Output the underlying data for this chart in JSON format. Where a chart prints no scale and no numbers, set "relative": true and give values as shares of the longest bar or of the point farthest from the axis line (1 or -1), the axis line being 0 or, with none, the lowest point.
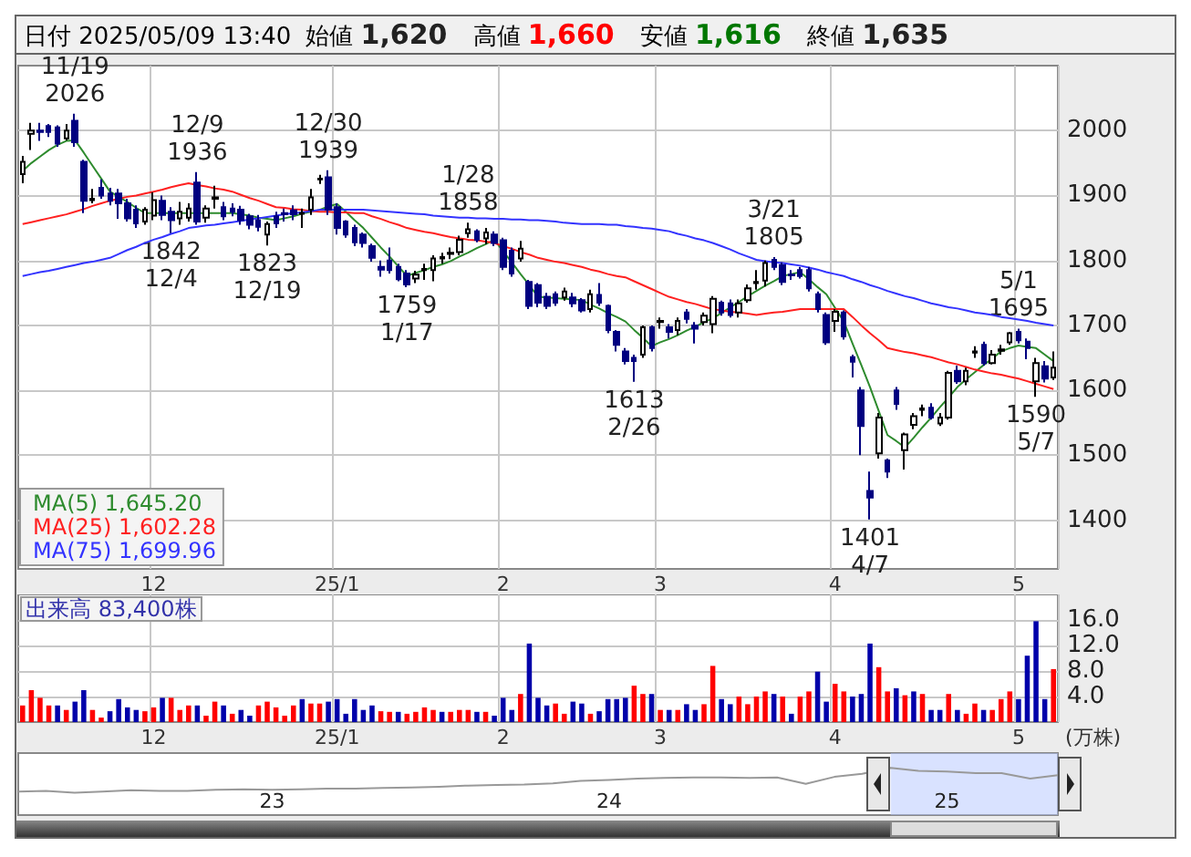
{
  "chart_data": [
    {
      "type": "candlestick",
      "title": "日付 2025/05/09 13:40",
      "categories": [
        null,
        null,
        null,
        null,
        null,
        null,
        null,
        null,
        null,
        null,
        null,
        null,
        null,
        null,
        null,
        "12",
        null,
        null,
        null,
        null,
        null,
        null,
        null,
        null,
        null,
        null,
        null,
        null,
        null,
        null,
        null,
        null,
        null,
        null,
        null,
        null,
        "25/1",
        null,
        null,
        null,
        null,
        null,
        null,
        null,
        null,
        null,
        null,
        null,
        null,
        null,
        null,
        null,
        null,
        null,
        null,
        "2",
        null,
        null,
        null,
        null,
        null,
        null,
        null,
        null,
        null,
        null,
        null,
        null,
        null,
        null,
        null,
        null,
        null,
        "3",
        null,
        null,
        null,
        null,
        null,
        null,
        null,
        null,
        null,
        null,
        null,
        null,
        null,
        null,
        null,
        null,
        null,
        null,
        null,
        "4",
        null,
        null,
        null,
        null,
        null,
        null,
        null,
        null,
        null,
        null,
        null,
        null,
        null,
        null,
        null,
        null,
        null,
        null,
        null,
        null,
        "5",
        null,
        null,
        null,
        null
      ],
      "ohlc": [
        [
          1933,
          1961,
          1919,
          1952
        ],
        [
          1995,
          2012,
          1970,
          2000
        ],
        [
          2000,
          2012,
          1984,
          1998
        ],
        [
          2007,
          2010,
          1990,
          1998
        ],
        [
          2005,
          2008,
          1975,
          1980
        ],
        [
          1988,
          2010,
          1985,
          2000
        ],
        [
          2015,
          2026,
          1975,
          1982
        ],
        [
          1952,
          1955,
          1873,
          1892
        ],
        [
          1893,
          1910,
          1888,
          1895
        ],
        [
          1912,
          1925,
          1895,
          1900
        ],
        [
          1903,
          1912,
          1885,
          1892
        ],
        [
          1903,
          1910,
          1864,
          1888
        ],
        [
          1888,
          1895,
          1860,
          1865
        ],
        [
          1878,
          1885,
          1850,
          1857
        ],
        [
          1860,
          1882,
          1855,
          1878
        ],
        [
          1869,
          1905,
          1862,
          1893
        ],
        [
          1892,
          1900,
          1862,
          1870
        ],
        [
          1875,
          1882,
          1842,
          1862
        ],
        [
          1865,
          1890,
          1855,
          1875
        ],
        [
          1866,
          1888,
          1860,
          1880
        ],
        [
          1920,
          1936,
          1855,
          1860
        ],
        [
          1866,
          1885,
          1858,
          1880
        ],
        [
          1895,
          1915,
          1880,
          1897
        ],
        [
          1882,
          1890,
          1862,
          1868
        ],
        [
          1880,
          1888,
          1868,
          1875
        ],
        [
          1878,
          1884,
          1855,
          1862
        ],
        [
          1868,
          1872,
          1848,
          1855
        ],
        [
          1862,
          1870,
          1845,
          1852
        ],
        [
          1840,
          1860,
          1823,
          1856
        ],
        [
          1868,
          1875,
          1850,
          1857
        ],
        [
          1873,
          1880,
          1860,
          1871
        ],
        [
          1877,
          1885,
          1862,
          1871
        ],
        [
          1872,
          1880,
          1850,
          1873
        ],
        [
          1878,
          1910,
          1870,
          1897
        ],
        [
          1925,
          1932,
          1918,
          1926
        ],
        [
          1928,
          1939,
          1870,
          1878
        ],
        [
          1882,
          1888,
          1840,
          1850
        ],
        [
          1860,
          1862,
          1835,
          1840
        ],
        [
          1850,
          1855,
          1822,
          1828
        ],
        [
          1840,
          1843,
          1820,
          1827
        ],
        [
          1822,
          1826,
          1798,
          1804
        ],
        [
          1790,
          1800,
          1775,
          1786
        ],
        [
          1800,
          1820,
          1780,
          1785
        ],
        [
          1790,
          1795,
          1768,
          1771
        ],
        [
          1780,
          1785,
          1759,
          1763
        ],
        [
          1772,
          1784,
          1765,
          1778
        ],
        [
          1785,
          1795,
          1770,
          1787
        ],
        [
          1785,
          1808,
          1768,
          1803
        ],
        [
          1803,
          1812,
          1795,
          1805
        ],
        [
          1810,
          1820,
          1802,
          1812
        ],
        [
          1813,
          1838,
          1808,
          1832
        ],
        [
          1842,
          1858,
          1835,
          1848
        ],
        [
          1845,
          1848,
          1828,
          1832
        ],
        [
          1834,
          1850,
          1825,
          1843
        ],
        [
          1840,
          1845,
          1822,
          1827
        ],
        [
          1831,
          1835,
          1785,
          1790
        ],
        [
          1815,
          1820,
          1775,
          1780
        ],
        [
          1803,
          1830,
          1798,
          1818
        ],
        [
          1767,
          1770,
          1725,
          1730
        ],
        [
          1762,
          1765,
          1728,
          1735
        ],
        [
          1744,
          1750,
          1725,
          1730
        ],
        [
          1748,
          1752,
          1730,
          1735
        ],
        [
          1743,
          1758,
          1738,
          1752
        ],
        [
          1743,
          1750,
          1728,
          1734
        ],
        [
          1739,
          1742,
          1720,
          1723
        ],
        [
          1725,
          1755,
          1720,
          1748
        ],
        [
          1747,
          1765,
          1730,
          1735
        ],
        [
          1730,
          1732,
          1688,
          1693
        ],
        [
          1690,
          1693,
          1660,
          1670
        ],
        [
          1660,
          1665,
          1640,
          1645
        ],
        [
          1650,
          1655,
          1613,
          1645
        ],
        [
          1655,
          1700,
          1650,
          1697
        ],
        [
          1697,
          1700,
          1660,
          1665
        ],
        [
          1705,
          1712,
          1695,
          1707
        ],
        [
          1697,
          1702,
          1680,
          1690
        ],
        [
          1693,
          1712,
          1685,
          1707
        ],
        [
          1720,
          1725,
          1703,
          1710
        ],
        [
          1700,
          1705,
          1672,
          1695
        ],
        [
          1705,
          1720,
          1700,
          1715
        ],
        [
          1702,
          1745,
          1688,
          1741
        ],
        [
          1735,
          1738,
          1715,
          1720
        ],
        [
          1734,
          1740,
          1712,
          1716
        ],
        [
          1720,
          1740,
          1712,
          1734
        ],
        [
          1739,
          1763,
          1735,
          1757
        ],
        [
          1765,
          1785,
          1755,
          1767
        ],
        [
          1769,
          1800,
          1760,
          1796
        ],
        [
          1801,
          1805,
          1785,
          1790
        ],
        [
          1793,
          1797,
          1762,
          1767
        ],
        [
          1778,
          1785,
          1770,
          1777
        ],
        [
          1785,
          1790,
          1772,
          1776
        ],
        [
          1785,
          1790,
          1752,
          1757
        ],
        [
          1748,
          1752,
          1720,
          1725
        ],
        [
          1716,
          1720,
          1670,
          1674
        ],
        [
          1707,
          1725,
          1690,
          1721
        ],
        [
          1720,
          1723,
          1678,
          1683
        ],
        [
          1651,
          1655,
          1620,
          1644
        ],
        [
          1600,
          1605,
          1500,
          1545
        ],
        [
          1445,
          1475,
          1401,
          1435
        ],
        [
          1503,
          1565,
          1495,
          1558
        ],
        [
          1492,
          1495,
          1465,
          1475
        ],
        [
          1600,
          1605,
          1570,
          1579
        ],
        [
          1508,
          1535,
          1478,
          1532
        ],
        [
          1547,
          1565,
          1540,
          1560
        ],
        [
          1570,
          1578,
          1560,
          1572
        ],
        [
          1573,
          1580,
          1555,
          1558
        ],
        [
          1549,
          1565,
          1545,
          1558
        ],
        [
          1558,
          1630,
          1555,
          1627
        ],
        [
          1630,
          1638,
          1610,
          1614
        ],
        [
          1614,
          1635,
          1608,
          1630
        ],
        [
          1658,
          1668,
          1650,
          1660
        ],
        [
          1670,
          1675,
          1638,
          1642
        ],
        [
          1642,
          1662,
          1640,
          1655
        ],
        [
          1661,
          1670,
          1655,
          1663
        ],
        [
          1674,
          1690,
          1670,
          1688
        ],
        [
          1690,
          1695,
          1672,
          1677
        ],
        [
          1675,
          1680,
          1648,
          1665
        ],
        [
          1614,
          1650,
          1590,
          1642
        ],
        [
          1637,
          1645,
          1612,
          1618
        ],
        [
          1620,
          1660,
          1616,
          1635
        ]
      ],
      "colors": [
        "#ffffff",
        "#ffffff",
        "#000080",
        "#000080",
        "#000080",
        "#ffffff",
        "#000080",
        "#000080",
        "#ffffff",
        "#000080",
        "#000080",
        "#000080",
        "#000080",
        "#000080",
        "#ffffff",
        "#ffffff",
        "#000080",
        "#000080",
        "#ffffff",
        "#ffffff",
        "#000080",
        "#ffffff",
        "#ffffff",
        "#000080",
        "#000080",
        "#000080",
        "#000080",
        "#000080",
        "#ffffff",
        "#000080",
        "#000080",
        "#000080",
        "#ffffff",
        "#ffffff",
        "#ffffff",
        "#000080",
        "#000080",
        "#000080",
        "#000080",
        "#000080",
        "#000080",
        "#000080",
        "#000080",
        "#000080",
        "#000080",
        "#ffffff",
        "#ffffff",
        "#ffffff",
        "#ffffff",
        "#ffffff",
        "#ffffff",
        "#ffffff",
        "#000080",
        "#ffffff",
        "#000080",
        "#000080",
        "#000080",
        "#ffffff",
        "#000080",
        "#000080",
        "#000080",
        "#000080",
        "#ffffff",
        "#000080",
        "#000080",
        "#ffffff",
        "#000080",
        "#000080",
        "#000080",
        "#000080",
        "#000080",
        "#ffffff",
        "#000080",
        "#ffffff",
        "#000080",
        "#ffffff",
        "#000080",
        "#000080",
        "#ffffff",
        "#ffffff",
        "#000080",
        "#000080",
        "#ffffff",
        "#ffffff",
        "#ffffff",
        "#ffffff",
        "#000080",
        "#000080",
        "#000080",
        "#000080",
        "#000080",
        "#000080",
        "#000080",
        "#ffffff",
        "#000080",
        "#000080",
        "#000080",
        "#000080",
        "#ffffff",
        "#000080",
        "#000080",
        "#ffffff",
        "#ffffff",
        "#ffffff",
        "#000080",
        "#ffffff",
        "#ffffff",
        "#000080",
        "#ffffff",
        "#ffffff",
        "#000080",
        "#ffffff",
        "#ffffff",
        "#ffffff",
        "#000080",
        "#000080",
        "#ffffff",
        "#000080",
        "#ffffff"
      ],
      "series": [
        {
          "type": "line",
          "name": "MA(5) 1,645.20",
          "color": "#2e8b2e",
          "values": [
            1938,
            1950,
            1960,
            1970,
            1978,
            1984,
            1985,
            1966,
            1946,
            1926,
            1906,
            1898,
            1890,
            1881,
            1873,
            1873,
            1873,
            1873,
            1873,
            1873,
            1873,
            1873,
            1873,
            1873,
            1873,
            1871,
            1869,
            1866,
            1864,
            1862,
            1865,
            1868,
            1872,
            1875,
            1878,
            1883,
            1887,
            1875,
            1862,
            1850,
            1835,
            1820,
            1806,
            1791,
            1776,
            1781,
            1785,
            1790,
            1794,
            1799,
            1806,
            1812,
            1819,
            1825,
            1832,
            1814,
            1797,
            1779,
            1762,
            1744,
            1743,
            1742,
            1741,
            1740,
            1739,
            1732,
            1726,
            1719,
            1713,
            1706,
            1693,
            1681,
            1668,
            1674,
            1679,
            1685,
            1692,
            1698,
            1705,
            1711,
            1719,
            1728,
            1736,
            1745,
            1753,
            1761,
            1768,
            1776,
            1779,
            1782,
            1771,
            1759,
            1748,
            1727,
            1706,
            1672,
            1639,
            1605,
            1568,
            1531,
            1522,
            1512,
            1527,
            1543,
            1558,
            1574,
            1589,
            1605,
            1617,
            1628,
            1639,
            1649,
            1660,
            1665,
            1669,
            1667,
            1665,
            1655,
            1645
          ]
        },
        {
          "type": "line",
          "name": "MA(25) 1,602.28",
          "color": "#ff2020",
          "values": [
            1856,
            1859,
            1862,
            1865,
            1868,
            1871,
            1875,
            1879,
            1884,
            1888,
            1892,
            1895,
            1898,
            1900,
            1903,
            1906,
            1909,
            1913,
            1916,
            1919,
            1916,
            1914,
            1911,
            1909,
            1906,
            1901,
            1896,
            1892,
            1887,
            1882,
            1881,
            1879,
            1878,
            1876,
            1875,
            1875,
            1874,
            1874,
            1873,
            1873,
            1868,
            1864,
            1859,
            1855,
            1850,
            1847,
            1844,
            1842,
            1839,
            1836,
            1834,
            1832,
            1831,
            1829,
            1827,
            1822,
            1818,
            1813,
            1809,
            1804,
            1801,
            1798,
            1796,
            1793,
            1790,
            1786,
            1783,
            1779,
            1776,
            1774,
            1768,
            1762,
            1756,
            1750,
            1744,
            1740,
            1736,
            1733,
            1729,
            1725,
            1723,
            1721,
            1720,
            1718,
            1716,
            1718,
            1720,
            1721,
            1723,
            1725,
            1725,
            1725,
            1725,
            1725,
            1725,
            1713,
            1700,
            1688,
            1677,
            1665,
            1662,
            1659,
            1657,
            1654,
            1651,
            1647,
            1643,
            1640,
            1636,
            1632,
            1629,
            1626,
            1624,
            1621,
            1618,
            1614,
            1610,
            1606,
            1602
          ]
        },
        {
          "type": "line",
          "name": "MA(75) 1,699.96",
          "color": "#3333ff",
          "values": [
            1776,
            1779,
            1782,
            1784,
            1787,
            1790,
            1793,
            1796,
            1798,
            1801,
            1804,
            1810,
            1816,
            1821,
            1827,
            1832,
            1836,
            1841,
            1845,
            1850,
            1852,
            1854,
            1855,
            1857,
            1859,
            1861,
            1863,
            1865,
            1867,
            1869,
            1871,
            1873,
            1874,
            1876,
            1878,
            1878,
            1878,
            1878,
            1878,
            1878,
            1877,
            1876,
            1875,
            1874,
            1873,
            1872,
            1871,
            1869,
            1868,
            1867,
            1866,
            1866,
            1865,
            1865,
            1864,
            1864,
            1863,
            1863,
            1862,
            1862,
            1861,
            1860,
            1858,
            1857,
            1856,
            1856,
            1856,
            1855,
            1855,
            1853,
            1852,
            1850,
            1849,
            1847,
            1845,
            1841,
            1838,
            1834,
            1831,
            1827,
            1822,
            1817,
            1811,
            1806,
            1801,
            1799,
            1797,
            1796,
            1794,
            1792,
            1789,
            1786,
            1782,
            1779,
            1776,
            1771,
            1767,
            1762,
            1758,
            1753,
            1749,
            1745,
            1742,
            1738,
            1734,
            1731,
            1728,
            1726,
            1723,
            1720,
            1718,
            1716,
            1713,
            1711,
            1709,
            1707,
            1704,
            1702,
            1700
          ]
        }
      ],
      "ylim": [
        1325,
        2100
      ],
      "yticks": [
        1400,
        1500,
        1600,
        1700,
        1800,
        1900,
        2000
      ],
      "grid": true,
      "legend": "bottom left",
      "annotations": [
        "始値 1,620",
        "高値 1,660",
        "安値 1,616",
        "終値 1,635",
        {
          "text": "11/19\n2026",
          "y": 2026
        },
        {
          "text": "1842\n12/4",
          "y": 1842
        },
        {
          "text": "12/9\n1936",
          "y": 1936
        },
        {
          "text": "1823\n12/19",
          "y": 1823
        },
        {
          "text": "12/30\n1939",
          "y": 1939
        },
        {
          "text": "1759\n1/17",
          "y": 1759
        },
        {
          "text": "1/28\n1858",
          "y": 1858
        },
        {
          "text": "1613\n2/26",
          "y": 1613
        },
        {
          "text": "3/21\n1805",
          "y": 1805
        },
        {
          "text": "1401\n4/7",
          "y": 1401
        },
        {
          "text": "5/1\n1695",
          "y": 1695
        },
        {
          "text": "1590\n5/7",
          "y": 1590
        }
      ]
    },
    {
      "type": "bar",
      "title": "出来高 83,400株",
      "ylabel": "(万株)",
      "categories": [
        null,
        null,
        null,
        null,
        null,
        null,
        null,
        null,
        null,
        null,
        null,
        null,
        null,
        null,
        null,
        "12",
        null,
        null,
        null,
        null,
        null,
        null,
        null,
        null,
        null,
        null,
        null,
        null,
        null,
        null,
        null,
        null,
        null,
        null,
        null,
        null,
        "25/1",
        null,
        null,
        null,
        null,
        null,
        null,
        null,
        null,
        null,
        null,
        null,
        null,
        null,
        null,
        null,
        null,
        null,
        null,
        "2",
        null,
        null,
        null,
        null,
        null,
        null,
        null,
        null,
        null,
        null,
        null,
        null,
        null,
        null,
        null,
        null,
        null,
        "3",
        null,
        null,
        null,
        null,
        null,
        null,
        null,
        null,
        null,
        null,
        null,
        null,
        null,
        null,
        null,
        null,
        null,
        null,
        null,
        "4",
        null,
        null,
        null,
        null,
        null,
        null,
        null,
        null,
        null,
        null,
        null,
        null,
        null,
        null,
        null,
        null,
        null,
        null,
        null,
        null,
        "5",
        null,
        null,
        null,
        null
      ],
      "values": [
        2.6,
        5.0,
        3.8,
        2.6,
        2.6,
        1.9,
        3.2,
        5.0,
        1.9,
        0.7,
        1.7,
        3.6,
        2.3,
        1.9,
        1.7,
        2.3,
        3.8,
        3.8,
        1.9,
        2.6,
        2.6,
        1.0,
        3.2,
        2.6,
        1.3,
        1.9,
        1.0,
        2.6,
        3.2,
        2.3,
        1.0,
        2.6,
        3.6,
        2.9,
        2.9,
        3.2,
        3.6,
        1.3,
        3.6,
        1.9,
        2.6,
        1.7,
        1.6,
        1.6,
        1.3,
        1.6,
        2.3,
        1.9,
        1.6,
        1.6,
        1.9,
        1.9,
        1.6,
        1.6,
        1.0,
        3.8,
        1.9,
        4.4,
        12.3,
        3.8,
        2.6,
        2.9,
        1.3,
        3.2,
        2.9,
        1.3,
        1.7,
        3.6,
        3.6,
        3.8,
        5.7,
        4.4,
        4.4,
        1.9,
        1.9,
        1.9,
        2.8,
        1.9,
        2.8,
        8.8,
        3.6,
        2.8,
        4.0,
        2.8,
        4.0,
        4.8,
        4.4,
        4.0,
        1.3,
        4.0,
        4.8,
        7.9,
        3.2,
        6.0,
        4.8,
        4.0,
        4.4,
        12.3,
        8.6,
        4.8,
        5.3,
        4.2,
        4.8,
        4.4,
        1.9,
        1.9,
        4.4,
        1.9,
        1.3,
        2.9,
        1.9,
        1.9,
        3.6,
        4.8,
        3.6,
        10.4,
        15.8,
        3.6,
        8.3
      ],
      "colors": [
        "#ff0000",
        "#ff0000",
        "#ff0000",
        "#ff0000",
        "#0000aa",
        "#ff0000",
        "#0000aa",
        "#0000aa",
        "#ff0000",
        "#ff0000",
        "#0000aa",
        "#0000aa",
        "#0000aa",
        "#0000aa",
        "#ff0000",
        "#ff0000",
        "#0000aa",
        "#ff0000",
        "#ff0000",
        "#ff0000",
        "#0000aa",
        "#ff0000",
        "#ff0000",
        "#0000aa",
        "#ff0000",
        "#0000aa",
        "#0000aa",
        "#ff0000",
        "#ff0000",
        "#ff0000",
        "#ff0000",
        "#ff0000",
        "#0000aa",
        "#ff0000",
        "#ff0000",
        "#0000aa",
        "#0000aa",
        "#0000aa",
        "#0000aa",
        "#0000aa",
        "#0000aa",
        "#ff0000",
        "#ff0000",
        "#0000aa",
        "#ff0000",
        "#ff0000",
        "#ff0000",
        "#ff0000",
        "#0000aa",
        "#ff0000",
        "#ff0000",
        "#ff0000",
        "#0000aa",
        "#ff0000",
        "#0000aa",
        "#0000aa",
        "#0000aa",
        "#ff0000",
        "#0000aa",
        "#0000aa",
        "#0000aa",
        "#ff0000",
        "#ff0000",
        "#0000aa",
        "#0000aa",
        "#ff0000",
        "#0000aa",
        "#0000aa",
        "#0000aa",
        "#0000aa",
        "#ff0000",
        "#ff0000",
        "#0000aa",
        "#ff0000",
        "#0000aa",
        "#ff0000",
        "#0000aa",
        "#0000aa",
        "#ff0000",
        "#ff0000",
        "#0000aa",
        "#0000aa",
        "#ff0000",
        "#ff0000",
        "#ff0000",
        "#ff0000",
        "#0000aa",
        "#ff0000",
        "#0000aa",
        "#ff0000",
        "#ff0000",
        "#0000aa",
        "#0000aa",
        "#ff0000",
        "#ff0000",
        "#0000aa",
        "#0000aa",
        "#0000aa",
        "#ff0000",
        "#ff0000",
        "#0000aa",
        "#ff0000",
        "#0000aa",
        "#ff0000",
        "#0000aa",
        "#0000aa",
        "#ff0000",
        "#0000aa",
        "#ff0000",
        "#ff0000",
        "#0000aa",
        "#ff0000",
        "#ff0000",
        "#ff0000",
        "#0000aa",
        "#0000aa",
        "#0000aa",
        "#0000aa",
        "#ff0000"
      ],
      "ylim": [
        0,
        20
      ],
      "yticks": [
        {
          "value": 4,
          "label": "4.0"
        },
        {
          "value": 8,
          "label": "8.0"
        },
        {
          "value": 12,
          "label": "12.0"
        },
        {
          "value": 16,
          "label": "16.0"
        }
      ],
      "grid": true
    },
    {
      "type": "line",
      "relative": true,
      "color": "#999999",
      "x": [
        "2022-04",
        "2022-05",
        "2022-06",
        "2022-07",
        "2022-08",
        "2022-09",
        "2022-10",
        "2022-11",
        "2022-12",
        "2023-01",
        "2023-02",
        "2023-03",
        "2023-04",
        "2023-05",
        "2023-06",
        "2023-07",
        "2023-08",
        "2023-09",
        "2023-10",
        "2023-11",
        "2023-12",
        "2024-01",
        "2024-02",
        "2024-03",
        "2024-04",
        "2024-05",
        "2024-06",
        "2024-07",
        "2024-08",
        "2024-09",
        "2024-10",
        "2024-11",
        "2024-12",
        "2025-01",
        "2025-02",
        "2025-03",
        "2025-04",
        "2025-05"
      ],
      "values": [
        0.05,
        0.07,
        0,
        0.05,
        0.1,
        0.07,
        0.07,
        0.12,
        0.14,
        0.12,
        0.14,
        0.17,
        0.17,
        0.19,
        0.21,
        0.24,
        0.29,
        0.31,
        0.33,
        0.38,
        0.48,
        0.52,
        0.57,
        0.6,
        0.62,
        0.62,
        0.6,
        0.62,
        0.36,
        0.64,
        0.76,
        1,
        0.88,
        0.86,
        0.79,
        0.79,
        0.57,
        0.71
      ],
      "xlim": [
        "2022-04",
        "2025-05"
      ],
      "xticks": [
        {
          "value": "2023",
          "label": "23"
        },
        {
          "value": "2024",
          "label": "24"
        },
        {
          "value": "2025",
          "label": "25"
        }
      ],
      "bands": [
        {
          "axis": "x",
          "from": "2024-11",
          "to": "2025-05",
          "color": "#b3c6ff"
        }
      ],
      "tick_labels": "x"
    }
  ]
}
